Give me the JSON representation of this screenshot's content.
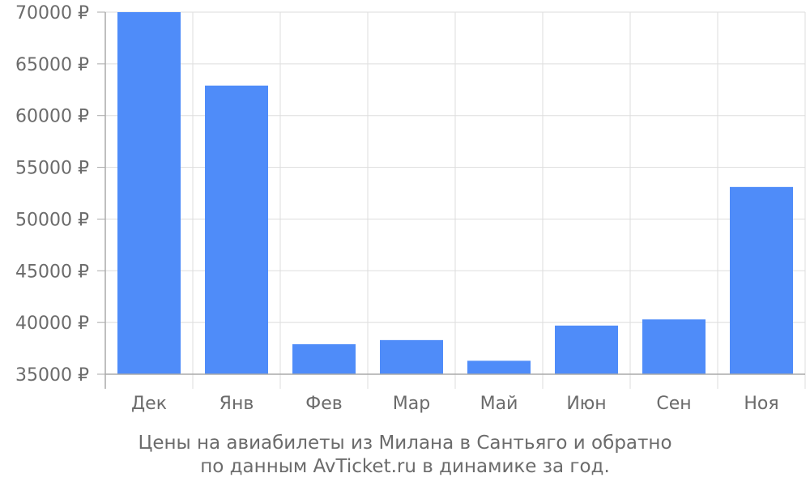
{
  "chart_data": {
    "type": "bar",
    "categories": [
      "Дек",
      "Янв",
      "Фев",
      "Мар",
      "Май",
      "Июн",
      "Сен",
      "Ноя"
    ],
    "values": [
      70000,
      62900,
      37900,
      38300,
      36300,
      39700,
      40300,
      53100
    ],
    "ylim": [
      35000,
      70000
    ],
    "yticks": [
      35000,
      40000,
      45000,
      50000,
      55000,
      60000,
      65000,
      70000
    ],
    "ytick_suffix": " ₽",
    "grid": true,
    "bar_color": "#4f8cf9",
    "grid_color": "#dddddd",
    "axis_color": "#aaaaaa",
    "text_color": "#6b6b6b"
  },
  "caption": {
    "line1": "Цены на авиабилеты из Милана в Сантьяго и обратно",
    "line2": "по данным AvTicket.ru в динамике за год."
  }
}
